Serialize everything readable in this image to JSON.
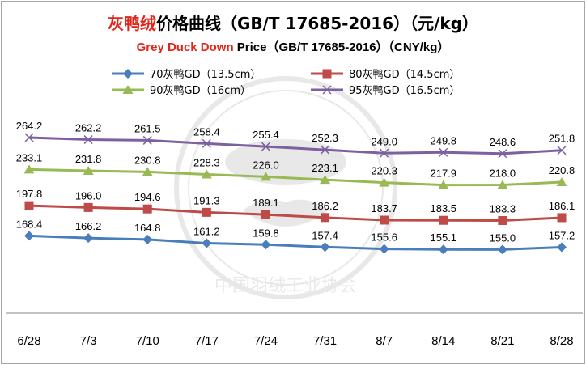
{
  "chart_data": {
    "type": "line",
    "title": {
      "cn_highlight": "灰鸭绒",
      "cn_rest": "价格曲线（GB/T 17685-2016）（元/kg）"
    },
    "subtitle": {
      "en_highlight": "Grey Duck Down",
      "en_rest": " Price（GB/T 17685-2016）（CNY/kg）"
    },
    "xlabel": "",
    "ylabel": "",
    "categories": [
      "6/28",
      "7/3",
      "7/10",
      "7/17",
      "7/24",
      "7/31",
      "8/7",
      "8/14",
      "8/21",
      "8/28"
    ],
    "ylim": [
      130,
      280
    ],
    "grid": false,
    "legend_position": "top",
    "series": [
      {
        "name": "70灰鸭GD（13.5cm）",
        "color": "#4a7ebb",
        "marker": "diamond",
        "values": [
          168.4,
          166.2,
          164.8,
          161.2,
          159.8,
          157.4,
          155.6,
          155.1,
          155.0,
          157.2
        ]
      },
      {
        "name": "80灰鸭GD（14.5cm）",
        "color": "#be4b48",
        "marker": "square",
        "values": [
          197.8,
          196.0,
          194.6,
          191.3,
          189.1,
          186.2,
          183.7,
          183.5,
          183.3,
          186.1
        ]
      },
      {
        "name": "90灰鸭GD（16cm）",
        "color": "#98b954",
        "marker": "triangle",
        "values": [
          233.1,
          231.8,
          230.8,
          228.3,
          226.0,
          223.1,
          220.3,
          217.9,
          218.0,
          220.8
        ]
      },
      {
        "name": "95灰鸭GD（16.5cm）",
        "color": "#7d60a0",
        "marker": "x",
        "values": [
          264.2,
          262.2,
          261.5,
          258.4,
          255.4,
          252.3,
          249.0,
          249.8,
          248.6,
          251.8
        ]
      }
    ]
  },
  "watermark": {
    "text": "中国羽绒工业协会"
  }
}
